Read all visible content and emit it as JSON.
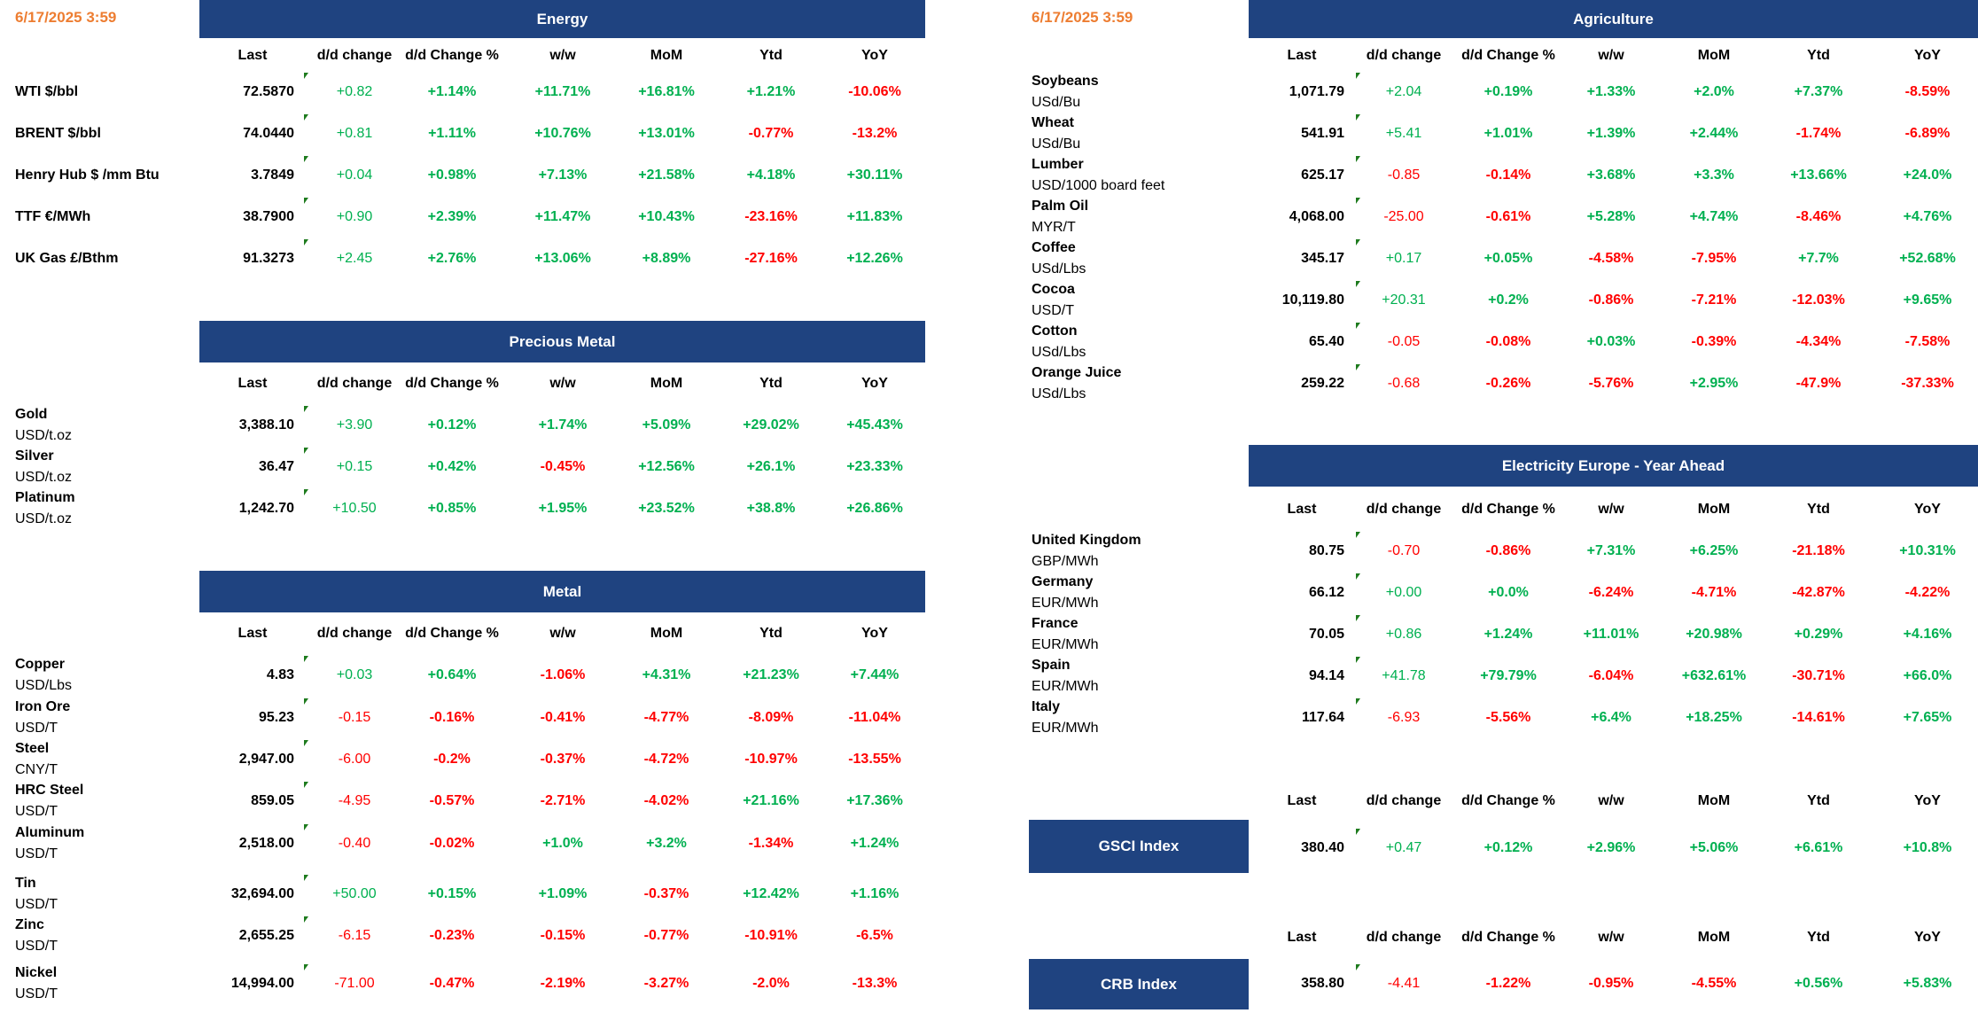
{
  "timestamp_left": "6/17/2025 3:59",
  "timestamp_right": "6/17/2025 3:59",
  "columns": [
    "Last",
    "d/d change",
    "d/d Change %",
    "w/w",
    "MoM",
    "Ytd",
    "YoY"
  ],
  "colors": {
    "header_bg": "#1F4380",
    "positive": "#00B050",
    "negative": "#FF0000",
    "timestamp": "#ED7D31"
  },
  "sections": [
    {
      "title": "Energy",
      "rows": [
        {
          "name": "WTI $/bbl",
          "unit": "",
          "values": [
            "72.5870",
            "+0.82",
            "+1.14%",
            "+11.71%",
            "+16.81%",
            "+1.21%",
            "-10.06%"
          ]
        },
        {
          "name": "BRENT $/bbl",
          "unit": "",
          "values": [
            "74.0440",
            "+0.81",
            "+1.11%",
            "+10.76%",
            "+13.01%",
            "-0.77%",
            "-13.2%"
          ]
        },
        {
          "name": "Henry Hub $ /mm Btu",
          "unit": "",
          "values": [
            "3.7849",
            "+0.04",
            "+0.98%",
            "+7.13%",
            "+21.58%",
            "+4.18%",
            "+30.11%"
          ]
        },
        {
          "name": "TTF €/MWh",
          "unit": "",
          "values": [
            "38.7900",
            "+0.90",
            "+2.39%",
            "+11.47%",
            "+10.43%",
            "-23.16%",
            "+11.83%"
          ]
        },
        {
          "name": "UK Gas £/Bthm",
          "unit": "",
          "values": [
            "91.3273",
            "+2.45",
            "+2.76%",
            "+13.06%",
            "+8.89%",
            "-27.16%",
            "+12.26%"
          ]
        }
      ]
    },
    {
      "title": "Precious Metal",
      "rows": [
        {
          "name": "Gold",
          "unit": "USD/t.oz",
          "values": [
            "3,388.10",
            "+3.90",
            "+0.12%",
            "+1.74%",
            "+5.09%",
            "+29.02%",
            "+45.43%"
          ]
        },
        {
          "name": "Silver",
          "unit": "USD/t.oz",
          "values": [
            "36.47",
            "+0.15",
            "+0.42%",
            "-0.45%",
            "+12.56%",
            "+26.1%",
            "+23.33%"
          ]
        },
        {
          "name": "Platinum",
          "unit": "USD/t.oz",
          "values": [
            "1,242.70",
            "+10.50",
            "+0.85%",
            "+1.95%",
            "+23.52%",
            "+38.8%",
            "+26.86%"
          ]
        }
      ]
    },
    {
      "title": "Metal",
      "rows": [
        {
          "name": "Copper",
          "unit": "USD/Lbs",
          "values": [
            "4.83",
            "+0.03",
            "+0.64%",
            "-1.06%",
            "+4.31%",
            "+21.23%",
            "+7.44%"
          ]
        },
        {
          "name": "Iron Ore",
          "unit": "USD/T",
          "values": [
            "95.23",
            "-0.15",
            "-0.16%",
            "-0.41%",
            "-4.77%",
            "-8.09%",
            "-11.04%"
          ]
        },
        {
          "name": "Steel",
          "unit": "CNY/T",
          "values": [
            "2,947.00",
            "-6.00",
            "-0.2%",
            "-0.37%",
            "-4.72%",
            "-10.97%",
            "-13.55%"
          ]
        },
        {
          "name": "HRC Steel",
          "unit": "USD/T",
          "values": [
            "859.05",
            "-4.95",
            "-0.57%",
            "-2.71%",
            "-4.02%",
            "+21.16%",
            "+17.36%"
          ]
        },
        {
          "name": "Aluminum",
          "unit": "USD/T",
          "values": [
            "2,518.00",
            "-0.40",
            "-0.02%",
            "+1.0%",
            "+3.2%",
            "-1.34%",
            "+1.24%"
          ]
        },
        {
          "name": "Tin",
          "unit": "USD/T",
          "values": [
            "32,694.00",
            "+50.00",
            "+0.15%",
            "+1.09%",
            "-0.37%",
            "+12.42%",
            "+1.16%"
          ]
        },
        {
          "name": "Zinc",
          "unit": "USD/T",
          "values": [
            "2,655.25",
            "-6.15",
            "-0.23%",
            "-0.15%",
            "-0.77%",
            "-10.91%",
            "-6.5%"
          ]
        },
        {
          "name": "Nickel",
          "unit": "USD/T",
          "values": [
            "14,994.00",
            "-71.00",
            "-0.47%",
            "-2.19%",
            "-3.27%",
            "-2.0%",
            "-13.3%"
          ]
        }
      ]
    },
    {
      "title": "Agriculture",
      "rows": [
        {
          "name": "Soybeans",
          "unit": "USd/Bu",
          "values": [
            "1,071.79",
            "+2.04",
            "+0.19%",
            "+1.33%",
            "+2.0%",
            "+7.37%",
            "-8.59%"
          ]
        },
        {
          "name": "Wheat",
          "unit": "USd/Bu",
          "values": [
            "541.91",
            "+5.41",
            "+1.01%",
            "+1.39%",
            "+2.44%",
            "-1.74%",
            "-6.89%"
          ]
        },
        {
          "name": "Lumber",
          "unit": "USD/1000 board feet",
          "values": [
            "625.17",
            "-0.85",
            "-0.14%",
            "+3.68%",
            "+3.3%",
            "+13.66%",
            "+24.0%"
          ]
        },
        {
          "name": "Palm Oil",
          "unit": "MYR/T",
          "values": [
            "4,068.00",
            "-25.00",
            "-0.61%",
            "+5.28%",
            "+4.74%",
            "-8.46%",
            "+4.76%"
          ]
        },
        {
          "name": "Coffee",
          "unit": "USd/Lbs",
          "values": [
            "345.17",
            "+0.17",
            "+0.05%",
            "-4.58%",
            "-7.95%",
            "+7.7%",
            "+52.68%"
          ]
        },
        {
          "name": "Cocoa",
          "unit": "USD/T",
          "values": [
            "10,119.80",
            "+20.31",
            "+0.2%",
            "-0.86%",
            "-7.21%",
            "-12.03%",
            "+9.65%"
          ]
        },
        {
          "name": "Cotton",
          "unit": "USd/Lbs",
          "values": [
            "65.40",
            "-0.05",
            "-0.08%",
            "+0.03%",
            "-0.39%",
            "-4.34%",
            "-7.58%"
          ]
        },
        {
          "name": "Orange Juice",
          "unit": "USd/Lbs",
          "values": [
            "259.22",
            "-0.68",
            "-0.26%",
            "-5.76%",
            "+2.95%",
            "-47.9%",
            "-37.33%"
          ]
        }
      ]
    },
    {
      "title": "Electricity Europe - Year Ahead",
      "rows": [
        {
          "name": "United Kingdom",
          "unit": "GBP/MWh",
          "values": [
            "80.75",
            "-0.70",
            "-0.86%",
            "+7.31%",
            "+6.25%",
            "-21.18%",
            "+10.31%"
          ]
        },
        {
          "name": "Germany",
          "unit": "EUR/MWh",
          "values": [
            "66.12",
            "+0.00",
            "+0.0%",
            "-6.24%",
            "-4.71%",
            "-42.87%",
            "-4.22%"
          ]
        },
        {
          "name": "France",
          "unit": "EUR/MWh",
          "values": [
            "70.05",
            "+0.86",
            "+1.24%",
            "+11.01%",
            "+20.98%",
            "+0.29%",
            "+4.16%"
          ]
        },
        {
          "name": "Spain",
          "unit": "EUR/MWh",
          "values": [
            "94.14",
            "+41.78",
            "+79.79%",
            "-6.04%",
            "+632.61%",
            "-30.71%",
            "+66.0%"
          ]
        },
        {
          "name": "Italy",
          "unit": "EUR/MWh",
          "values": [
            "117.64",
            "-6.93",
            "-5.56%",
            "+6.4%",
            "+18.25%",
            "-14.61%",
            "+7.65%"
          ]
        }
      ]
    },
    {
      "title": "GSCI Index",
      "rows": [
        {
          "name": "",
          "unit": "",
          "values": [
            "380.40",
            "+0.47",
            "+0.12%",
            "+2.96%",
            "+5.06%",
            "+6.61%",
            "+10.8%"
          ]
        }
      ]
    },
    {
      "title": "CRB Index",
      "rows": [
        {
          "name": "",
          "unit": "",
          "values": [
            "358.80",
            "-4.41",
            "-1.22%",
            "-0.95%",
            "-4.55%",
            "+0.56%",
            "+5.83%"
          ]
        }
      ]
    }
  ]
}
